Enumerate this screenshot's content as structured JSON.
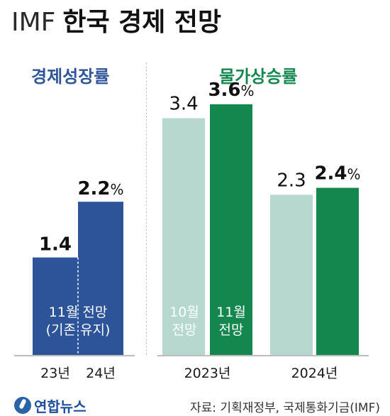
{
  "title_prefix": "IMF",
  "title_main": "한국 경제 전망",
  "colors": {
    "growth": "#2d5398",
    "inflation_oct": "#b6d8cf",
    "inflation_nov": "#14874f",
    "growth_label": "#2d5398",
    "inflation_label": "#14874f"
  },
  "chart_data": [
    {
      "type": "bar",
      "title": "경제성장률",
      "categories": [
        "23년",
        "24년"
      ],
      "series": [
        {
          "values": [
            1.4,
            2.2
          ]
        }
      ],
      "value_labels": [
        "1.4",
        "2.2%"
      ],
      "note": [
        "11월 전망",
        "(기존 유지)"
      ],
      "ylim": [
        0,
        4.2
      ]
    },
    {
      "type": "bar",
      "title": "물가상승률",
      "categories": [
        "2023년",
        "2024년"
      ],
      "series": [
        {
          "name": "10월 전망",
          "values": [
            3.4,
            2.3
          ],
          "value_labels": [
            "3.4",
            "2.3"
          ]
        },
        {
          "name": "11월 전망",
          "values": [
            3.6,
            2.4
          ],
          "value_labels": [
            "3.6%",
            "2.4%"
          ]
        }
      ],
      "series_label_lines": [
        [
          "10월",
          "전망"
        ],
        [
          "11월",
          "전망"
        ]
      ],
      "ylim": [
        0,
        4.2
      ]
    }
  ],
  "footer": {
    "logo": "연합뉴스",
    "source": "자료: 기획재정부, 국제통화기금(IMF)"
  }
}
